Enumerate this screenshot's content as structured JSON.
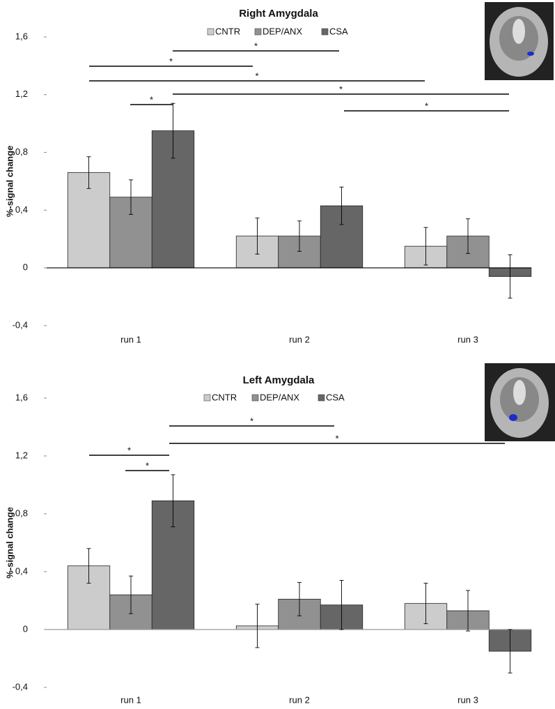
{
  "chart_data": [
    {
      "type": "bar",
      "title": "Right Amygdala",
      "y_label": "%-signal change",
      "categories": [
        "run 1",
        "run 2",
        "run 3"
      ],
      "series": [
        {
          "name": "CNTR",
          "color": "#cccccc",
          "values": [
            0.66,
            0.22,
            0.15
          ],
          "errors": [
            0.11,
            0.125,
            0.13
          ]
        },
        {
          "name": "DEP/ANX",
          "color": "#919191",
          "values": [
            0.49,
            0.22,
            0.22
          ],
          "errors": [
            0.12,
            0.105,
            0.12
          ]
        },
        {
          "name": "CSA",
          "color": "#666666",
          "values": [
            0.95,
            0.43,
            -0.06
          ],
          "errors": [
            0.19,
            0.13,
            0.15
          ]
        }
      ],
      "ylim": [
        -0.4,
        1.6
      ],
      "yticks": [
        {
          "value": -0.4,
          "label": "-0,4"
        },
        0,
        {
          "value": 0.4,
          "label": "0,4"
        },
        {
          "value": 0.8,
          "label": "0,8"
        },
        {
          "value": 1.2,
          "label": "1,2"
        },
        {
          "value": 1.6,
          "label": "1,6"
        }
      ],
      "annotations": [
        "*",
        "*",
        "*",
        "*",
        "*",
        "*"
      ]
    },
    {
      "type": "bar",
      "title": "Left Amygdala",
      "y_label": "%-signal change",
      "categories": [
        "run 1",
        "run 2",
        "run 3"
      ],
      "series": [
        {
          "name": "CNTR",
          "color": "#cccccc",
          "values": [
            0.44,
            0.025,
            0.18
          ],
          "errors": [
            0.12,
            0.15,
            0.14
          ]
        },
        {
          "name": "DEP/ANX",
          "color": "#919191",
          "values": [
            0.24,
            0.21,
            0.13
          ],
          "errors": [
            0.13,
            0.115,
            0.14
          ]
        },
        {
          "name": "CSA",
          "color": "#666666",
          "values": [
            0.89,
            0.17,
            -0.15
          ],
          "errors": [
            0.18,
            0.17,
            0.15
          ]
        }
      ],
      "ylim": [
        -0.4,
        1.6
      ],
      "yticks": [
        {
          "value": -0.4,
          "label": "-0,4"
        },
        0,
        {
          "value": 0.4,
          "label": "0,4"
        },
        {
          "value": 0.8,
          "label": "0,8"
        },
        {
          "value": 1.2,
          "label": "1,2"
        },
        {
          "value": 1.6,
          "label": "1,6"
        }
      ],
      "annotations": [
        "*",
        "*",
        "*",
        "*"
      ]
    }
  ]
}
